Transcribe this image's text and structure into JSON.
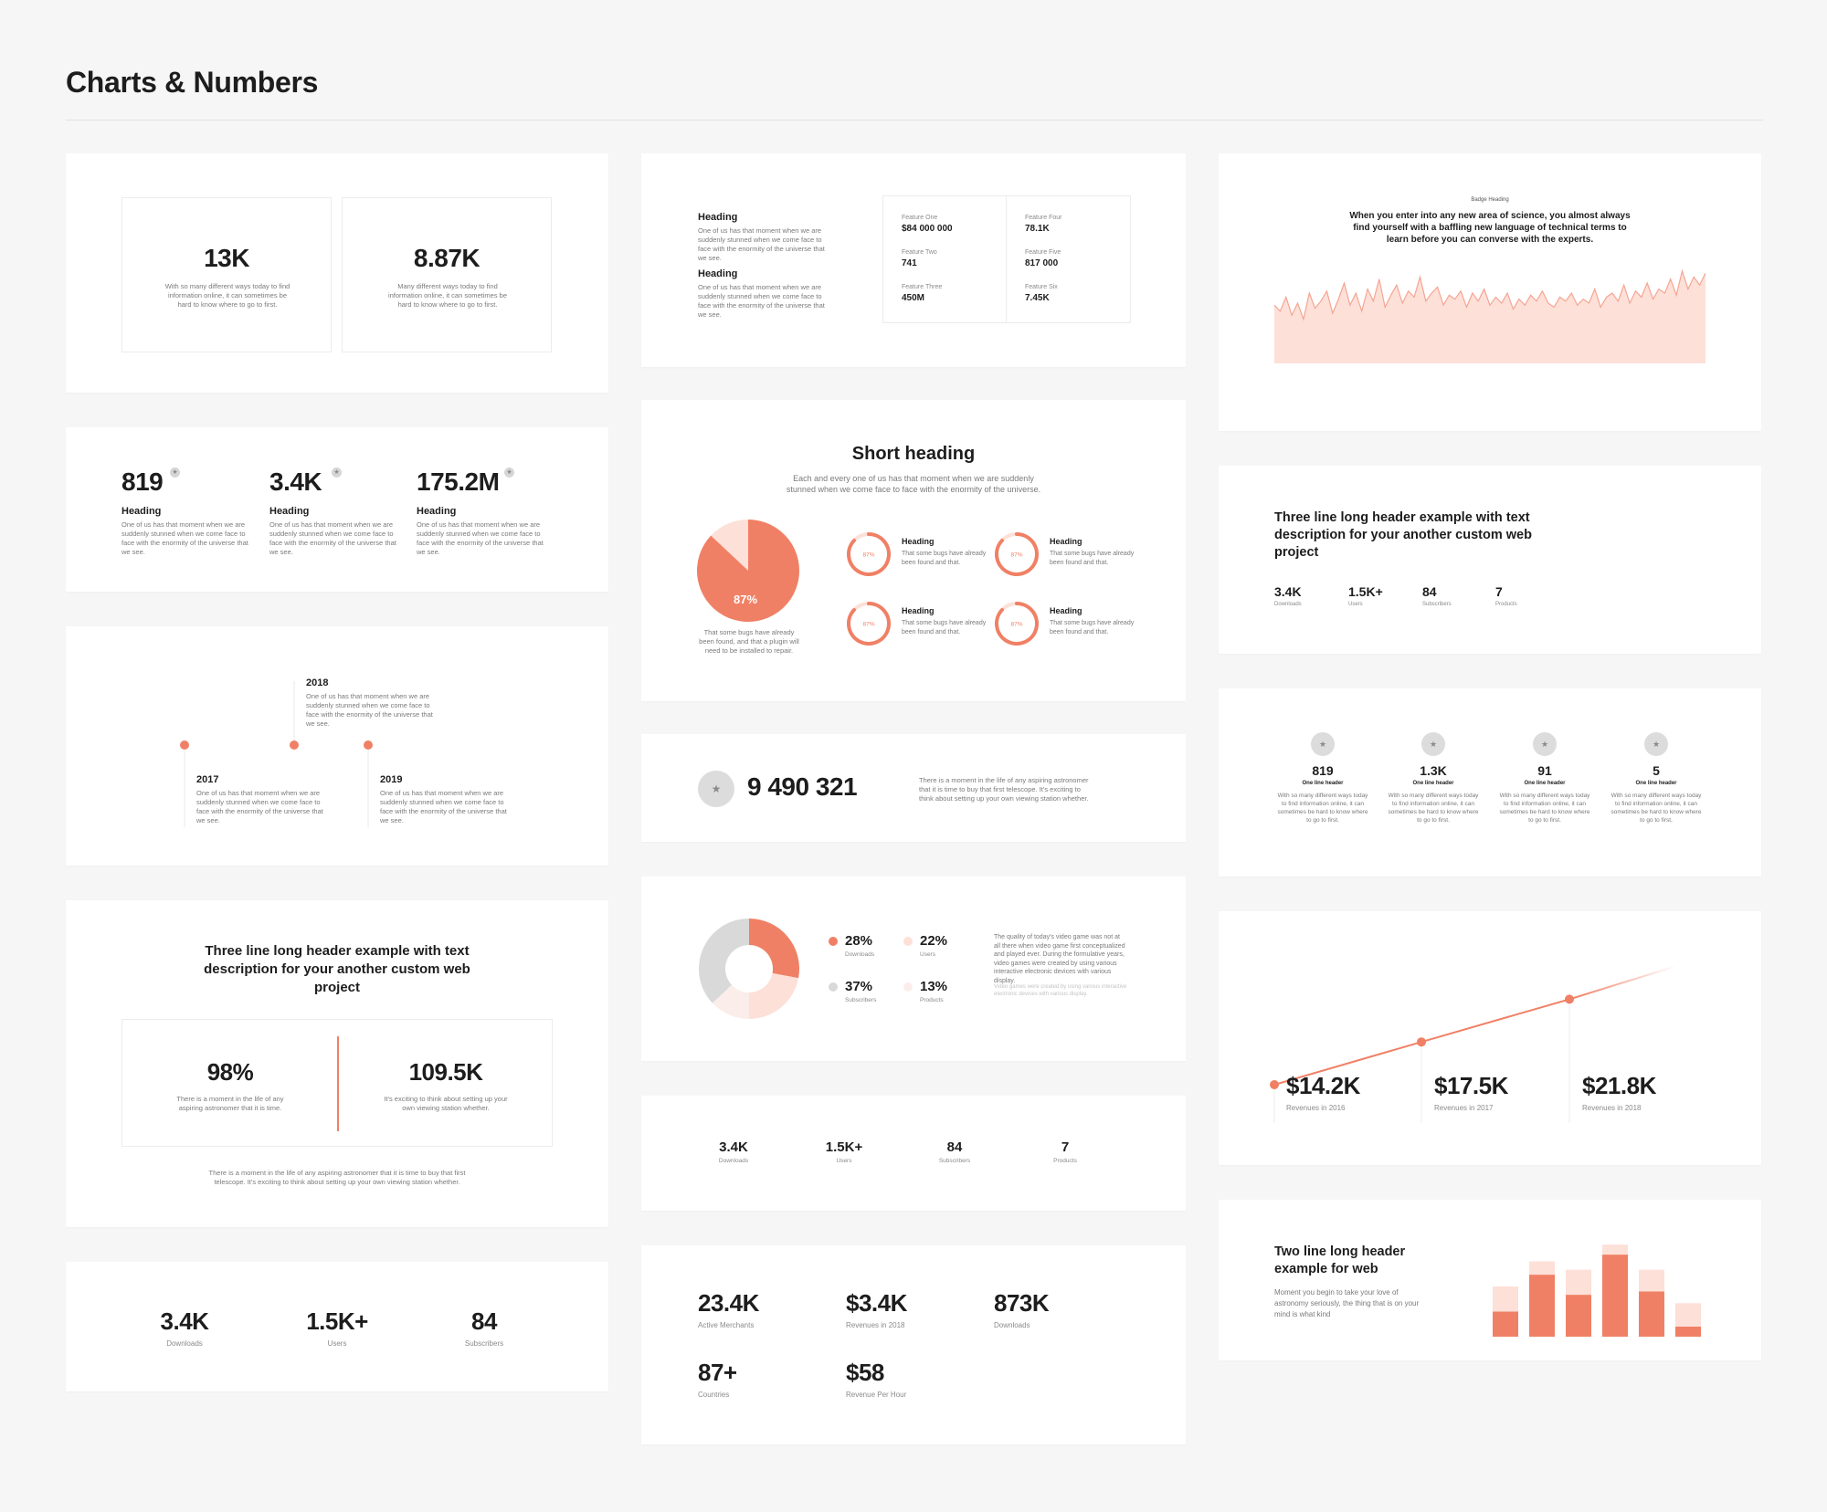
{
  "page": {
    "title": "Charts & Numbers"
  },
  "colors": {
    "accent": "#f08065",
    "accent_light": "#fde0d8",
    "grey": "#d6d6d6",
    "background": "#f6f6f6"
  },
  "icons": {
    "badge": "star-icon"
  },
  "c1": {
    "stats": [
      {
        "value": "13K",
        "desc": "With so many different ways today to find information online, it can sometimes be hard to know where to go to first."
      },
      {
        "value": "8.87K",
        "desc": "Many different ways today to find information online, it can sometimes be hard to know where to go to first."
      }
    ]
  },
  "c2": {
    "stats": [
      {
        "value": "819",
        "badge": "★",
        "heading": "Heading",
        "desc": "One of us has that moment when we are suddenly stunned when we come face to face with the enormity of the universe that we see."
      },
      {
        "value": "3.4K",
        "badge": "★",
        "heading": "Heading",
        "desc": "One of us has that moment when we are suddenly stunned when we come face to face with the enormity of the universe that we see."
      },
      {
        "value": "175.2M",
        "badge": "★",
        "heading": "Heading",
        "desc": "One of us has that moment when we are suddenly stunned when we come face to face with the enormity of the universe that we see."
      }
    ]
  },
  "c3": {
    "events": [
      {
        "year": "2018",
        "desc": "One of us has that moment when we are suddenly stunned when we come face to face with the enormity of the universe that we see."
      },
      {
        "year": "2017",
        "desc": "One of us has that moment when we are suddenly stunned when we come face to face with the enormity of the universe that we see."
      },
      {
        "year": "2019",
        "desc": "One of us has that moment when we are suddenly stunned when we come face to face with the enormity of the universe that we see."
      }
    ]
  },
  "c4": {
    "title": "Three line long header example with text description for your another custom web project",
    "stats": [
      {
        "value": "98%",
        "desc": "There is a moment in the life of any aspiring astronomer that it is time."
      },
      {
        "value": "109.5K",
        "desc": "It's exciting to think about setting up your own viewing station whether."
      }
    ],
    "footer": "There is a moment in the life of any aspiring astronomer that it is time to buy that first telescope. It's exciting to think about setting up your own viewing station whether."
  },
  "c5": {
    "stats": [
      {
        "value": "3.4K",
        "label": "Downloads"
      },
      {
        "value": "1.5K+",
        "label": "Users"
      },
      {
        "value": "84",
        "label": "Subscribers"
      }
    ]
  },
  "m1": {
    "headings": [
      {
        "title": "Heading",
        "desc": "One of us has that moment when we are suddenly stunned when we come face to face with the enormity of the universe that we see."
      },
      {
        "title": "Heading",
        "desc": "One of us has that moment when we are suddenly stunned when we come face to face with the enormity of the universe that we see."
      }
    ],
    "features": [
      {
        "label": "Feature One",
        "value": "$84 000 000"
      },
      {
        "label": "Feature Two",
        "value": "741"
      },
      {
        "label": "Feature Three",
        "value": "450M"
      },
      {
        "label": "Feature Four",
        "value": "78.1K"
      },
      {
        "label": "Feature Five",
        "value": "817 000"
      },
      {
        "label": "Feature Six",
        "value": "7.45K"
      }
    ]
  },
  "m2": {
    "title": "Short heading",
    "subtitle": "Each and every one of us has that moment when we are suddenly stunned when we come face to face with the enormity of the universe.",
    "pie_percent": 87,
    "pie_label": "87%",
    "pie_caption": "That some bugs have already been found, and that a plugin will need to be installed to repair.",
    "rings": [
      {
        "percent": 87,
        "label": "87%",
        "heading": "Heading",
        "desc": "That some bugs have already been found and that."
      },
      {
        "percent": 87,
        "label": "87%",
        "heading": "Heading",
        "desc": "That some bugs have already been found and that."
      },
      {
        "percent": 87,
        "label": "87%",
        "heading": "Heading",
        "desc": "That some bugs have already been found and that."
      },
      {
        "percent": 87,
        "label": "87%",
        "heading": "Heading",
        "desc": "That some bugs have already been found and that."
      }
    ]
  },
  "m3": {
    "badge": "★",
    "value": "9 490 321",
    "desc": "There is a moment in the life of any aspiring astronomer that it is time to buy that first telescope. It's exciting to think about setting up your own viewing station whether."
  },
  "m4": {
    "legend": [
      {
        "value": "28%",
        "label": "Downloads",
        "color": "#f08065"
      },
      {
        "value": "22%",
        "label": "Users",
        "color": "#fde0d8"
      },
      {
        "value": "37%",
        "label": "Subscribers",
        "color": "#d9d9d9"
      },
      {
        "value": "13%",
        "label": "Products",
        "color": "#fbeeea"
      }
    ],
    "desc": "The quality of today's video game was not at all there when video game first conceptualized and played ever. During the formulative years, video games were created by using various interactive electronic devices with various display.",
    "desc2": "Video games were created by using various interactive electronic devices with various display."
  },
  "m5": {
    "stats": [
      {
        "value": "3.4K",
        "label": "Downloads"
      },
      {
        "value": "1.5K+",
        "label": "Users"
      },
      {
        "value": "84",
        "label": "Subscribers"
      },
      {
        "value": "7",
        "label": "Products"
      }
    ]
  },
  "m6": {
    "stats": [
      {
        "value": "23.4K",
        "label": "Active Merchants"
      },
      {
        "value": "$3.4K",
        "label": "Revenues in 2018"
      },
      {
        "value": "873K",
        "label": "Downloads"
      },
      {
        "value": "87+",
        "label": "Countries"
      },
      {
        "value": "$58",
        "label": "Revenue Per Hour"
      }
    ]
  },
  "r1": {
    "badge": "Badge Heading",
    "title": "When you enter into any new area of science, you almost always find yourself with a baffling new language of technical terms to learn before you can converse with the experts."
  },
  "r2": {
    "title": "Three line long header example with text description for your another custom web project",
    "stats": [
      {
        "value": "3.4K",
        "label": "Downloads"
      },
      {
        "value": "1.5K+",
        "label": "Users"
      },
      {
        "value": "84",
        "label": "Subscribers"
      },
      {
        "value": "7",
        "label": "Products"
      }
    ]
  },
  "r3": {
    "stats": [
      {
        "badge": "★",
        "value": "819",
        "header": "One line header",
        "desc": "With so many different ways today to find information online, it can sometimes be hard to know where to go to first."
      },
      {
        "badge": "★",
        "value": "1.3K",
        "header": "One line header",
        "desc": "With so many different ways today to find information online, it can sometimes be hard to know where to go to first."
      },
      {
        "badge": "★",
        "value": "91",
        "header": "One line header",
        "desc": "With so many different ways today to find information online, it can sometimes be hard to know where to go to first."
      },
      {
        "badge": "★",
        "value": "5",
        "header": "One line header",
        "desc": "With so many different ways today to find information online, it can sometimes be hard to know where to go to first."
      }
    ]
  },
  "r4": {
    "stats": [
      {
        "value": "$14.2K",
        "label": "Revenues in 2016"
      },
      {
        "value": "$17.5K",
        "label": "Revenues in 2017"
      },
      {
        "value": "$21.8K",
        "label": "Revenues in 2018"
      }
    ]
  },
  "r5": {
    "title": "Two line long header example for web",
    "desc": "Moment you begin to take your love of astronomy seriously, the thing that is on your mind is what kind"
  },
  "chart_data": [
    {
      "type": "area",
      "series": [
        {
          "values": [
            58,
            52,
            66,
            48,
            60,
            44,
            70,
            55,
            62,
            72,
            50,
            64,
            80,
            58,
            70,
            52,
            74,
            62,
            84,
            56,
            68,
            78,
            60,
            72,
            66,
            86,
            62,
            70,
            76,
            58,
            68,
            64,
            72,
            56,
            70,
            62,
            74,
            58,
            66,
            60,
            70,
            54,
            64,
            58,
            68,
            62,
            72,
            60,
            56,
            66,
            62,
            70,
            58,
            64,
            60,
            74,
            56,
            66,
            70,
            62,
            78,
            60,
            72,
            66,
            80,
            64,
            74,
            70,
            84,
            68,
            92,
            74,
            86,
            78,
            90
          ]
        }
      ],
      "ylim": [
        0,
        100
      ]
    },
    {
      "type": "line",
      "series": [
        {
          "values": [
            1,
            2.3,
            3.6,
            4.6
          ]
        }
      ],
      "ylim": [
        0,
        5
      ]
    },
    {
      "type": "bar",
      "series": [
        {
          "values": [
            30,
            45,
            40,
            55,
            40,
            20
          ]
        },
        {
          "values": [
            15,
            37,
            25,
            49,
            27,
            6
          ]
        }
      ],
      "ylim": [
        0,
        60
      ]
    }
  ]
}
